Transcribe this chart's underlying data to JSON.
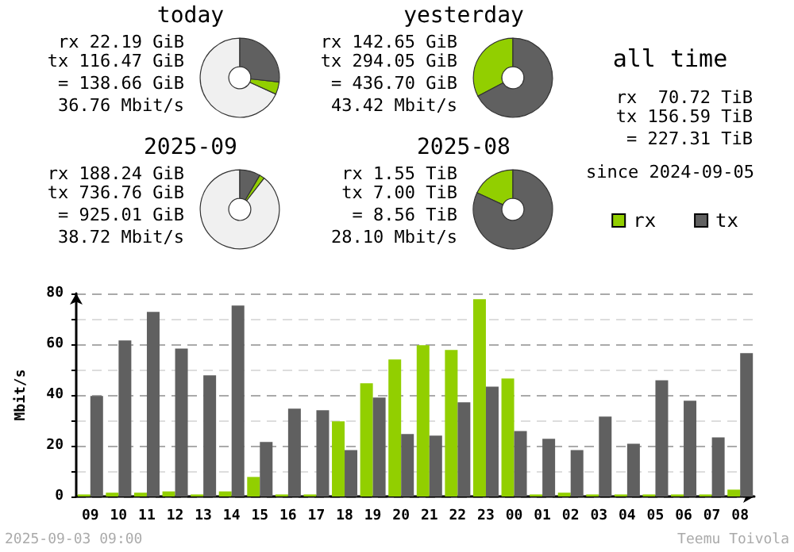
{
  "chart_data": [
    {
      "type": "donut",
      "title": "today",
      "categories": [
        null,
        null,
        null
      ],
      "values": [
        5.1,
        26.7,
        68.2
      ],
      "colors": [
        "#92cf00",
        "#606060",
        "#f0f0f0"
      ],
      "annotations": [
        "rx 22.19 GiB",
        "tx 116.47 GiB",
        "= 138.66 GiB",
        "36.76 Mbit/s"
      ]
    },
    {
      "type": "donut",
      "title": "yesterday",
      "categories": [
        null,
        null
      ],
      "values": [
        32.7,
        67.3
      ],
      "colors": [
        "#92cf00",
        "#606060"
      ],
      "annotations": [
        "rx 142.65 GiB",
        "tx 294.05 GiB",
        "= 436.70 GiB",
        "43.42 Mbit/s"
      ]
    },
    {
      "type": "donut",
      "title": "2025-09",
      "categories": [
        null,
        null,
        null
      ],
      "values": [
        2.1,
        8.4,
        89.5
      ],
      "colors": [
        "#92cf00",
        "#606060",
        "#f0f0f0"
      ],
      "annotations": [
        "rx 188.24 GiB",
        "tx 736.76 GiB",
        "= 925.01 GiB",
        "38.72 Mbit/s"
      ]
    },
    {
      "type": "donut",
      "title": "2025-08",
      "categories": [
        null,
        null
      ],
      "values": [
        18.1,
        81.9
      ],
      "colors": [
        "#92cf00",
        "#606060"
      ],
      "annotations": [
        "rx 1.55 TiB",
        "tx 7.00 TiB",
        "= 8.56 TiB",
        "28.10 Mbit/s"
      ]
    },
    {
      "type": "other",
      "title": "all time",
      "annotations": [
        "rx  70.72 TiB",
        "tx 156.59 TiB",
        "= 227.31 TiB",
        "since 2024-09-05"
      ]
    },
    {
      "type": "bar",
      "ylabel": "Mbit/s",
      "categories": [
        "09",
        "10",
        "11",
        "12",
        "13",
        "14",
        "15",
        "16",
        "17",
        "18",
        "19",
        "20",
        "21",
        "22",
        "23",
        "00",
        "01",
        "02",
        "03",
        "04",
        "05",
        "06",
        "07",
        "08"
      ],
      "series": [
        {
          "name": "rx",
          "color": "#92cf00",
          "values": [
            0.8,
            1.5,
            1.5,
            2,
            0.8,
            2,
            7.7,
            0.8,
            0.8,
            29.6,
            44.6,
            54,
            59.6,
            57.7,
            77.7,
            46.5,
            0.8,
            1.5,
            0.8,
            0.8,
            0.8,
            0.8,
            0.8,
            2.7
          ]
        },
        {
          "name": "tx",
          "color": "#606060",
          "values": [
            39.6,
            61.5,
            72.7,
            58.3,
            47.7,
            75.2,
            21.5,
            34.6,
            34,
            18.3,
            39,
            24.6,
            24,
            37.1,
            43.3,
            25.8,
            22.7,
            18.3,
            31.5,
            20.8,
            45.8,
            37.7,
            23.3,
            56.5
          ]
        }
      ],
      "ylim": [
        0,
        80
      ],
      "yticks": [
        0,
        {
          "value": 10,
          "label": null
        },
        20,
        {
          "value": 30,
          "label": null
        },
        40,
        {
          "value": 50,
          "label": null
        },
        60,
        {
          "value": 70,
          "label": null
        },
        80
      ],
      "grid": "y",
      "legend": "top right",
      "annotations": [
        "2025-09-03 09:00",
        "Teemu Toivola"
      ]
    }
  ]
}
